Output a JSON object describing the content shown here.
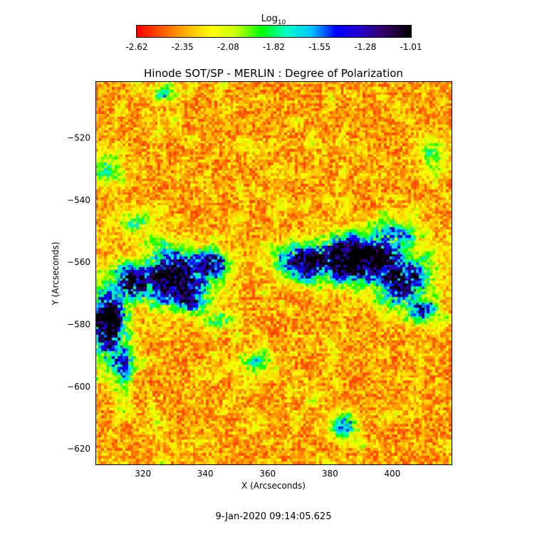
{
  "chart_data": {
    "type": "heatmap",
    "title": "Hinode SOT/SP - MERLIN : Degree of Polarization",
    "xlabel": "X (Arcseconds)",
    "ylabel": "Y (Arcseconds)",
    "xlim": [
      305,
      419
    ],
    "ylim": [
      -625,
      -502
    ],
    "x_ticks": [
      320,
      340,
      360,
      380,
      400
    ],
    "y_ticks": [
      -520,
      -540,
      -560,
      -580,
      -600,
      -620
    ],
    "colorbar": {
      "label_main": "Log",
      "label_sub": "10",
      "range": [
        -2.62,
        -1.01
      ],
      "tick_labels": [
        "-2.62",
        "-2.35",
        "-2.08",
        "-1.82",
        "-1.55",
        "-1.28",
        "-1.01"
      ],
      "colormap": [
        "#ff0000",
        "#ff5a00",
        "#ffb400",
        "#ffff00",
        "#c8ff00",
        "#00ff00",
        "#00ffc8",
        "#00c8ff",
        "#0000ff",
        "#2800c8",
        "#300060",
        "#000000"
      ]
    },
    "features": [
      {
        "x": 330,
        "y": -565,
        "sx": 7,
        "sy": 6,
        "amp": 1.25
      },
      {
        "x": 318,
        "y": -566,
        "sx": 6,
        "sy": 4,
        "amp": 1.0
      },
      {
        "x": 309,
        "y": -580,
        "sx": 4,
        "sy": 7,
        "amp": 1.2
      },
      {
        "x": 313,
        "y": -592,
        "sx": 3,
        "sy": 5,
        "amp": 0.7
      },
      {
        "x": 341,
        "y": -561,
        "sx": 4,
        "sy": 3,
        "amp": 1.0
      },
      {
        "x": 336,
        "y": -573,
        "sx": 5,
        "sy": 3,
        "amp": 0.55
      },
      {
        "x": 345,
        "y": -579,
        "sx": 4,
        "sy": 2,
        "amp": 0.4
      },
      {
        "x": 374,
        "y": -560,
        "sx": 7,
        "sy": 4,
        "amp": 1.0
      },
      {
        "x": 390,
        "y": -559,
        "sx": 10,
        "sy": 5,
        "amp": 1.3
      },
      {
        "x": 403,
        "y": -566,
        "sx": 6,
        "sy": 5,
        "amp": 1.1
      },
      {
        "x": 399,
        "y": -551,
        "sx": 6,
        "sy": 3,
        "amp": 0.65
      },
      {
        "x": 409,
        "y": -576,
        "sx": 4,
        "sy": 3,
        "amp": 0.6
      },
      {
        "x": 385,
        "y": -613,
        "sx": 3,
        "sy": 3,
        "amp": 0.55
      },
      {
        "x": 309,
        "y": -530,
        "sx": 3,
        "sy": 4,
        "amp": 0.4
      },
      {
        "x": 318,
        "y": -547,
        "sx": 4,
        "sy": 3,
        "amp": 0.35
      },
      {
        "x": 326,
        "y": -506,
        "sx": 3,
        "sy": 2,
        "amp": 0.35
      },
      {
        "x": 356,
        "y": -593,
        "sx": 4,
        "sy": 3,
        "amp": 0.3
      },
      {
        "x": 414,
        "y": -527,
        "sx": 3,
        "sy": 4,
        "amp": 0.3
      }
    ],
    "noise_level": 0.35,
    "background_value": 0.06
  },
  "footer": {
    "timestamp": "9-Jan-2020 09:14:05.625"
  }
}
